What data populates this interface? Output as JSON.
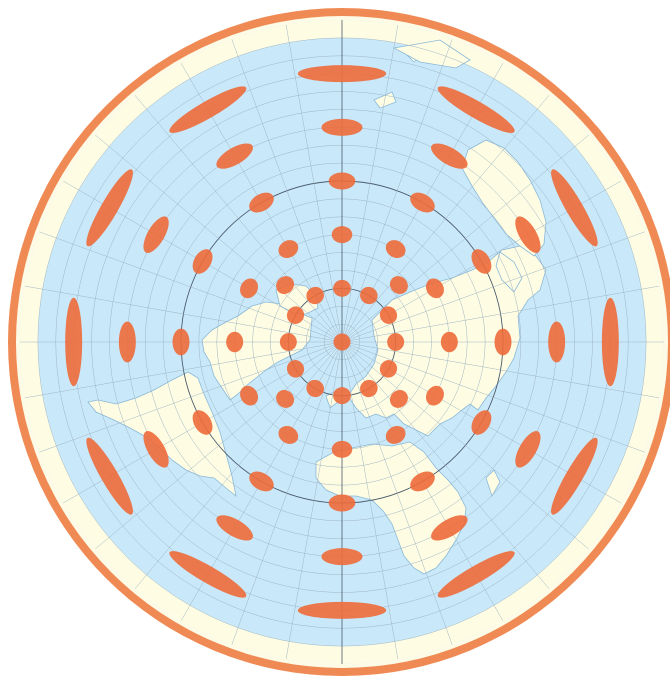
{
  "map": {
    "projection": "azimuthal-equidistant-north-polar",
    "colors": {
      "ocean": "#c9e9fb",
      "land": "#fefde3",
      "land_stroke": "#8ab8d8",
      "graticule": "#9fb4c2",
      "graticule_major": "#4b5b6b",
      "rim": "#f08a54",
      "rim_inner": "#fdfbe6",
      "indicatrix": "#ee6a3a"
    },
    "graticule_spacing_deg": 10,
    "major_circle_latitudes": [
      60,
      0
    ],
    "indicatrix_latitudes": [
      90,
      60,
      30,
      0,
      -30,
      -60
    ],
    "indicatrix_spacing_deg": 30,
    "indicatrix_latitude_set_b": [
      75,
      45,
      15,
      -15,
      -45,
      -75
    ]
  }
}
